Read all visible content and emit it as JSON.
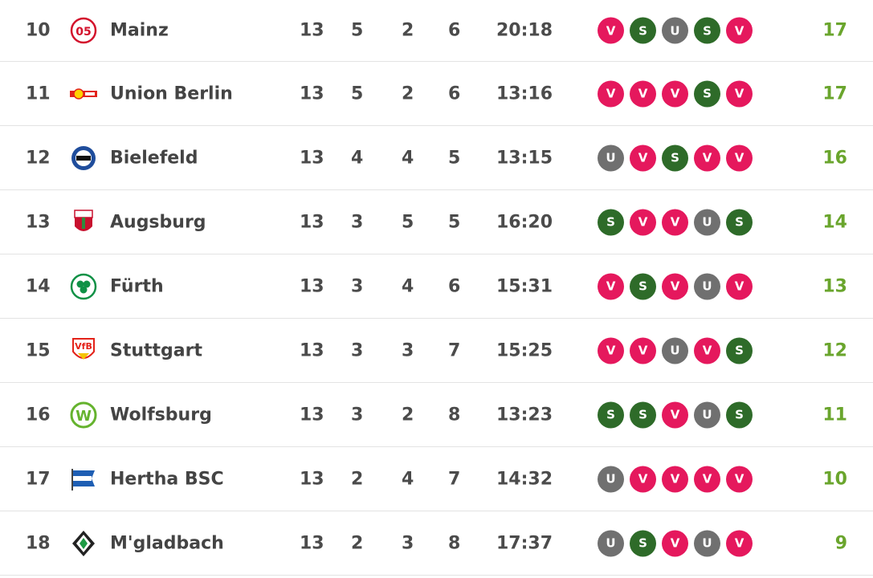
{
  "table": {
    "rows": [
      {
        "rank": "10",
        "team": "Mainz",
        "logo": "mainz-logo-icon",
        "played": "13",
        "won": "5",
        "drawn": "2",
        "lost": "6",
        "goals": "20:18",
        "form": [
          "V",
          "S",
          "U",
          "S",
          "V"
        ],
        "points": "17"
      },
      {
        "rank": "11",
        "team": "Union Berlin",
        "logo": "union-berlin-logo-icon",
        "played": "13",
        "won": "5",
        "drawn": "2",
        "lost": "6",
        "goals": "13:16",
        "form": [
          "V",
          "V",
          "V",
          "S",
          "V"
        ],
        "points": "17"
      },
      {
        "rank": "12",
        "team": "Bielefeld",
        "logo": "bielefeld-logo-icon",
        "played": "13",
        "won": "4",
        "drawn": "4",
        "lost": "5",
        "goals": "13:15",
        "form": [
          "U",
          "V",
          "S",
          "V",
          "V"
        ],
        "points": "16"
      },
      {
        "rank": "13",
        "team": "Augsburg",
        "logo": "augsburg-logo-icon",
        "played": "13",
        "won": "3",
        "drawn": "5",
        "lost": "5",
        "goals": "16:20",
        "form": [
          "S",
          "V",
          "V",
          "U",
          "S"
        ],
        "points": "14"
      },
      {
        "rank": "14",
        "team": "Fürth",
        "logo": "fuerth-logo-icon",
        "played": "13",
        "won": "3",
        "drawn": "4",
        "lost": "6",
        "goals": "15:31",
        "form": [
          "V",
          "S",
          "V",
          "U",
          "V"
        ],
        "points": "13"
      },
      {
        "rank": "15",
        "team": "Stuttgart",
        "logo": "stuttgart-logo-icon",
        "played": "13",
        "won": "3",
        "drawn": "3",
        "lost": "7",
        "goals": "15:25",
        "form": [
          "V",
          "V",
          "U",
          "V",
          "S"
        ],
        "points": "12"
      },
      {
        "rank": "16",
        "team": "Wolfsburg",
        "logo": "wolfsburg-logo-icon",
        "played": "13",
        "won": "3",
        "drawn": "2",
        "lost": "8",
        "goals": "13:23",
        "form": [
          "S",
          "S",
          "V",
          "U",
          "S"
        ],
        "points": "11"
      },
      {
        "rank": "17",
        "team": "Hertha BSC",
        "logo": "hertha-logo-icon",
        "played": "13",
        "won": "2",
        "drawn": "4",
        "lost": "7",
        "goals": "14:32",
        "form": [
          "U",
          "V",
          "V",
          "V",
          "V"
        ],
        "points": "10"
      },
      {
        "rank": "18",
        "team": "M'gladbach",
        "logo": "gladbach-logo-icon",
        "played": "13",
        "won": "2",
        "drawn": "3",
        "lost": "8",
        "goals": "17:37",
        "form": [
          "U",
          "S",
          "V",
          "U",
          "V"
        ],
        "points": "9"
      }
    ]
  },
  "colors": {
    "loss": "#e5185d",
    "win": "#2e6b29",
    "draw": "#707070",
    "points": "#6aa52d"
  }
}
